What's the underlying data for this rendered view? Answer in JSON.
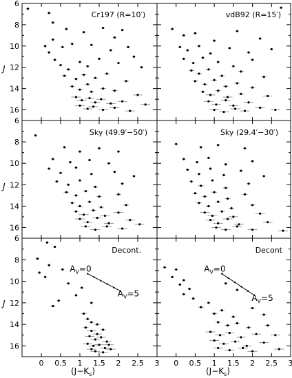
{
  "figure": {
    "y_axis_label": "J",
    "x_axis_label_parts": [
      "(J−K",
      "s",
      ")"
    ],
    "x_ticks": [
      0,
      0.5,
      1,
      1.5,
      2,
      2.5,
      3
    ],
    "y_ticks": [
      6,
      8,
      10,
      12,
      14,
      16
    ]
  },
  "chart_data": [
    {
      "type": "scatter",
      "panel": "top-left",
      "title": "Cr197 (R=10′)",
      "xlim": [
        -0.5,
        3.0
      ],
      "ylim": [
        17,
        6
      ],
      "grid": false,
      "points": [
        [
          -0.35,
          6.5
        ],
        [
          0.2,
          6.9
        ],
        [
          0.3,
          7.8
        ],
        [
          0.65,
          8.4
        ],
        [
          1.1,
          8.7
        ],
        [
          1.6,
          8.3
        ],
        [
          2.1,
          8.5
        ],
        [
          1.9,
          9.2
        ],
        [
          0.3,
          9.4
        ],
        [
          0.1,
          10.0
        ],
        [
          0.2,
          10.6
        ],
        [
          0.55,
          10.1
        ],
        [
          0.8,
          9.8
        ],
        [
          1.3,
          9.9
        ],
        [
          1.8,
          10.4
        ],
        [
          2.25,
          10.1
        ],
        [
          2.4,
          11.0
        ],
        [
          0.35,
          11.3
        ],
        [
          0.5,
          11.8
        ],
        [
          0.7,
          12.2
        ],
        [
          1.0,
          11.5
        ],
        [
          1.2,
          11.9
        ],
        [
          1.5,
          11.2
        ],
        [
          2.0,
          11.6
        ],
        [
          2.6,
          12.0
        ],
        [
          0.6,
          12.8
        ],
        [
          0.9,
          13.1
        ],
        [
          1.1,
          12.7
        ],
        [
          1.4,
          13.0
        ],
        [
          1.7,
          12.6
        ],
        [
          2.2,
          13.3
        ],
        [
          0.8,
          13.8
        ],
        [
          1.0,
          14.1
        ],
        [
          1.2,
          13.6
        ],
        [
          1.3,
          14.3
        ],
        [
          1.6,
          14.0
        ],
        [
          1.9,
          14.2
        ],
        [
          2.5,
          14.6
        ],
        [
          0.9,
          14.8
        ],
        [
          1.05,
          15.1
        ],
        [
          1.25,
          14.9
        ],
        [
          1.4,
          15.3
        ],
        [
          1.55,
          15.0
        ],
        [
          1.8,
          15.4
        ],
        [
          2.1,
          15.2
        ],
        [
          1.0,
          15.6
        ],
        [
          1.2,
          15.9
        ],
        [
          1.35,
          15.7
        ],
        [
          1.6,
          16.0
        ],
        [
          1.9,
          15.8
        ],
        [
          2.3,
          16.1
        ],
        [
          2.7,
          15.5
        ]
      ]
    },
    {
      "type": "scatter",
      "panel": "top-right",
      "title": "vdB92 (R=15′)",
      "xlim": [
        -0.5,
        3.0
      ],
      "ylim": [
        17,
        6
      ],
      "grid": false,
      "points": [
        [
          2.75,
          6.4
        ],
        [
          -0.1,
          8.4
        ],
        [
          0.2,
          9.0
        ],
        [
          0.5,
          8.8
        ],
        [
          1.0,
          9.5
        ],
        [
          1.6,
          8.6
        ],
        [
          2.2,
          9.3
        ],
        [
          0.1,
          10.1
        ],
        [
          0.3,
          10.4
        ],
        [
          0.6,
          10.0
        ],
        [
          0.9,
          10.7
        ],
        [
          1.4,
          10.2
        ],
        [
          1.9,
          10.6
        ],
        [
          2.5,
          10.3
        ],
        [
          0.2,
          11.2
        ],
        [
          0.45,
          11.6
        ],
        [
          0.7,
          11.1
        ],
        [
          1.1,
          11.5
        ],
        [
          1.5,
          11.9
        ],
        [
          2.0,
          11.3
        ],
        [
          0.4,
          12.3
        ],
        [
          0.6,
          12.6
        ],
        [
          0.85,
          12.2
        ],
        [
          1.2,
          12.8
        ],
        [
          1.7,
          12.4
        ],
        [
          2.3,
          12.9
        ],
        [
          0.5,
          13.3
        ],
        [
          0.75,
          13.6
        ],
        [
          1.0,
          13.2
        ],
        [
          1.3,
          13.8
        ],
        [
          1.6,
          13.5
        ],
        [
          2.0,
          13.9
        ],
        [
          0.7,
          14.3
        ],
        [
          0.9,
          14.6
        ],
        [
          1.1,
          14.2
        ],
        [
          1.35,
          14.8
        ],
        [
          1.7,
          14.5
        ],
        [
          2.4,
          14.7
        ],
        [
          0.85,
          15.2
        ],
        [
          1.05,
          15.5
        ],
        [
          1.3,
          15.1
        ],
        [
          1.5,
          15.6
        ],
        [
          1.9,
          15.3
        ],
        [
          2.2,
          15.8
        ],
        [
          1.0,
          16.0
        ],
        [
          1.25,
          16.2
        ],
        [
          1.55,
          15.9
        ],
        [
          1.8,
          16.1
        ],
        [
          2.6,
          16.0
        ]
      ]
    },
    {
      "type": "scatter",
      "panel": "middle-left",
      "title": "Sky (49.9′−50′)",
      "xlim": [
        -0.5,
        3.0
      ],
      "ylim": [
        17,
        6
      ],
      "grid": false,
      "points": [
        [
          -0.15,
          7.4
        ],
        [
          0.6,
          8.5
        ],
        [
          1.0,
          8.9
        ],
        [
          1.5,
          8.6
        ],
        [
          2.0,
          8.9
        ],
        [
          0.3,
          9.6
        ],
        [
          0.75,
          9.9
        ],
        [
          1.25,
          9.7
        ],
        [
          1.75,
          10.0
        ],
        [
          0.2,
          10.5
        ],
        [
          0.5,
          10.9
        ],
        [
          0.9,
          10.4
        ],
        [
          1.3,
          11.0
        ],
        [
          1.9,
          10.8
        ],
        [
          2.4,
          11.2
        ],
        [
          0.4,
          11.7
        ],
        [
          0.7,
          12.0
        ],
        [
          1.0,
          11.6
        ],
        [
          1.4,
          12.2
        ],
        [
          2.1,
          11.9
        ],
        [
          0.65,
          12.7
        ],
        [
          0.9,
          13.0
        ],
        [
          1.15,
          12.6
        ],
        [
          1.5,
          13.1
        ],
        [
          2.0,
          12.9
        ],
        [
          0.8,
          13.7
        ],
        [
          1.0,
          14.0
        ],
        [
          1.25,
          13.6
        ],
        [
          1.55,
          14.1
        ],
        [
          2.2,
          13.9
        ],
        [
          0.9,
          14.5
        ],
        [
          1.1,
          14.8
        ],
        [
          1.35,
          14.4
        ],
        [
          1.65,
          14.9
        ],
        [
          2.0,
          14.6
        ],
        [
          1.0,
          15.2
        ],
        [
          1.2,
          15.5
        ],
        [
          1.45,
          15.1
        ],
        [
          1.75,
          15.6
        ],
        [
          2.3,
          15.3
        ],
        [
          1.15,
          15.9
        ],
        [
          1.4,
          16.2
        ],
        [
          1.7,
          15.9
        ],
        [
          2.1,
          16.1
        ],
        [
          2.55,
          15.7
        ]
      ]
    },
    {
      "type": "scatter",
      "panel": "middle-right",
      "title": "Sky (29.4′−30′)",
      "xlim": [
        -0.5,
        3.0
      ],
      "ylim": [
        17,
        6
      ],
      "grid": false,
      "points": [
        [
          0.0,
          8.2
        ],
        [
          0.65,
          8.5
        ],
        [
          1.1,
          8.3
        ],
        [
          1.8,
          8.6
        ],
        [
          0.2,
          9.6
        ],
        [
          0.55,
          9.9
        ],
        [
          0.85,
          9.5
        ],
        [
          1.3,
          10.1
        ],
        [
          2.0,
          9.8
        ],
        [
          0.3,
          10.6
        ],
        [
          0.6,
          11.0
        ],
        [
          0.9,
          10.5
        ],
        [
          1.25,
          11.1
        ],
        [
          1.7,
          10.7
        ],
        [
          2.3,
          11.2
        ],
        [
          0.4,
          11.7
        ],
        [
          0.65,
          12.1
        ],
        [
          0.95,
          11.6
        ],
        [
          1.3,
          12.3
        ],
        [
          1.9,
          11.9
        ],
        [
          0.5,
          12.8
        ],
        [
          0.75,
          13.1
        ],
        [
          1.0,
          12.7
        ],
        [
          1.35,
          13.3
        ],
        [
          1.8,
          12.9
        ],
        [
          0.6,
          13.7
        ],
        [
          0.85,
          14.0
        ],
        [
          1.1,
          13.6
        ],
        [
          1.45,
          14.2
        ],
        [
          2.0,
          13.9
        ],
        [
          0.75,
          14.6
        ],
        [
          0.95,
          14.9
        ],
        [
          1.2,
          14.5
        ],
        [
          1.5,
          15.0
        ],
        [
          2.2,
          14.7
        ],
        [
          0.9,
          15.3
        ],
        [
          1.1,
          15.6
        ],
        [
          1.35,
          15.2
        ],
        [
          1.65,
          15.7
        ],
        [
          2.4,
          15.5
        ],
        [
          1.05,
          16.0
        ],
        [
          1.3,
          16.2
        ],
        [
          1.6,
          15.9
        ],
        [
          2.0,
          16.2
        ],
        [
          2.8,
          16.3
        ]
      ]
    },
    {
      "type": "scatter",
      "panel": "bottom-left",
      "title": "Decont.",
      "xlim": [
        -0.5,
        3.0
      ],
      "ylim": [
        17,
        6
      ],
      "grid": false,
      "reddening_vector": {
        "start": [
          1.2,
          9.3
        ],
        "end": [
          2.05,
          10.9
        ],
        "start_label": [
          "A",
          "V",
          "=0"
        ],
        "end_label": [
          "A",
          "V",
          "=5"
        ]
      },
      "points": [
        [
          0.15,
          6.4
        ],
        [
          0.35,
          6.8
        ],
        [
          -0.1,
          7.9
        ],
        [
          0.2,
          8.5
        ],
        [
          0.55,
          8.9
        ],
        [
          -0.05,
          9.2
        ],
        [
          0.1,
          9.6
        ],
        [
          0.7,
          10.2
        ],
        [
          1.05,
          10.6
        ],
        [
          0.9,
          11.3
        ],
        [
          0.45,
          11.8
        ],
        [
          0.3,
          12.3
        ],
        [
          1.3,
          12.0
        ],
        [
          1.1,
          13.0
        ],
        [
          1.2,
          13.5
        ],
        [
          1.3,
          13.8
        ],
        [
          1.45,
          14.0
        ],
        [
          1.15,
          14.3
        ],
        [
          1.3,
          14.6
        ],
        [
          1.45,
          14.9
        ],
        [
          1.6,
          14.5
        ],
        [
          1.25,
          15.1
        ],
        [
          1.4,
          15.4
        ],
        [
          1.55,
          15.2
        ],
        [
          1.7,
          15.6
        ],
        [
          1.2,
          15.8
        ],
        [
          1.35,
          16.0
        ],
        [
          1.5,
          15.9
        ],
        [
          1.65,
          16.2
        ],
        [
          1.8,
          16.3
        ],
        [
          1.4,
          16.5
        ],
        [
          1.6,
          16.6
        ],
        [
          1.3,
          16.3
        ],
        [
          1.75,
          15.9
        ]
      ]
    },
    {
      "type": "scatter",
      "panel": "bottom-right",
      "title": "Decont",
      "xlim": [
        -0.5,
        3.0
      ],
      "ylim": [
        17,
        6
      ],
      "grid": false,
      "reddening_vector": {
        "start": [
          1.2,
          9.3
        ],
        "end": [
          2.05,
          11.3
        ],
        "start_label": [
          "A",
          "V",
          "=0"
        ],
        "end_label": [
          "A",
          "V",
          "=5"
        ]
      },
      "points": [
        [
          -0.3,
          8.7
        ],
        [
          0.0,
          8.9
        ],
        [
          -0.1,
          9.6
        ],
        [
          0.2,
          9.9
        ],
        [
          0.1,
          10.3
        ],
        [
          0.35,
          10.7
        ],
        [
          0.2,
          11.2
        ],
        [
          0.45,
          11.6
        ],
        [
          1.3,
          10.2
        ],
        [
          1.6,
          10.8
        ],
        [
          0.65,
          12.4
        ],
        [
          0.85,
          12.0
        ],
        [
          1.0,
          13.0
        ],
        [
          1.2,
          12.7
        ],
        [
          1.5,
          13.3
        ],
        [
          2.0,
          12.5
        ],
        [
          2.3,
          13.1
        ],
        [
          1.1,
          13.8
        ],
        [
          1.35,
          14.1
        ],
        [
          1.6,
          13.9
        ],
        [
          1.9,
          14.3
        ],
        [
          2.4,
          14.1
        ],
        [
          0.9,
          14.7
        ],
        [
          1.15,
          15.0
        ],
        [
          1.4,
          14.8
        ],
        [
          1.7,
          15.2
        ],
        [
          2.1,
          14.9
        ],
        [
          2.6,
          15.0
        ],
        [
          1.0,
          15.5
        ],
        [
          1.25,
          15.8
        ],
        [
          1.55,
          15.6
        ],
        [
          1.85,
          16.0
        ],
        [
          2.3,
          15.7
        ],
        [
          1.1,
          16.2
        ],
        [
          1.4,
          16.4
        ],
        [
          1.75,
          16.2
        ],
        [
          2.0,
          16.5
        ],
        [
          2.7,
          16.3
        ]
      ]
    }
  ]
}
